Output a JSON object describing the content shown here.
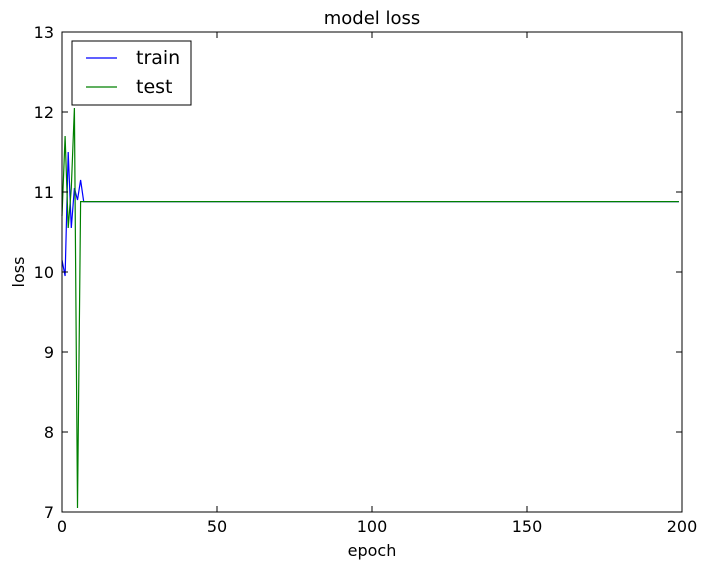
{
  "chart_data": {
    "type": "line",
    "title": "model loss",
    "xlabel": "epoch",
    "ylabel": "loss",
    "xlim": [
      0,
      200
    ],
    "ylim": [
      7,
      13
    ],
    "xticks": [
      0,
      50,
      100,
      150,
      200
    ],
    "yticks": [
      7,
      8,
      9,
      10,
      11,
      12,
      13
    ],
    "legend_position": "top-left",
    "series": [
      {
        "name": "train",
        "color": "#0000ff",
        "x": [
          0,
          1,
          2,
          3,
          4,
          5,
          6,
          7,
          199
        ],
        "values": [
          10.15,
          9.95,
          11.5,
          10.55,
          11.05,
          10.9,
          11.15,
          10.88,
          10.88
        ]
      },
      {
        "name": "test",
        "color": "#008000",
        "x": [
          0,
          1,
          2,
          3,
          4,
          5,
          6,
          199
        ],
        "values": [
          10.7,
          11.7,
          10.55,
          11.05,
          12.05,
          7.05,
          10.88,
          10.88
        ]
      }
    ]
  }
}
